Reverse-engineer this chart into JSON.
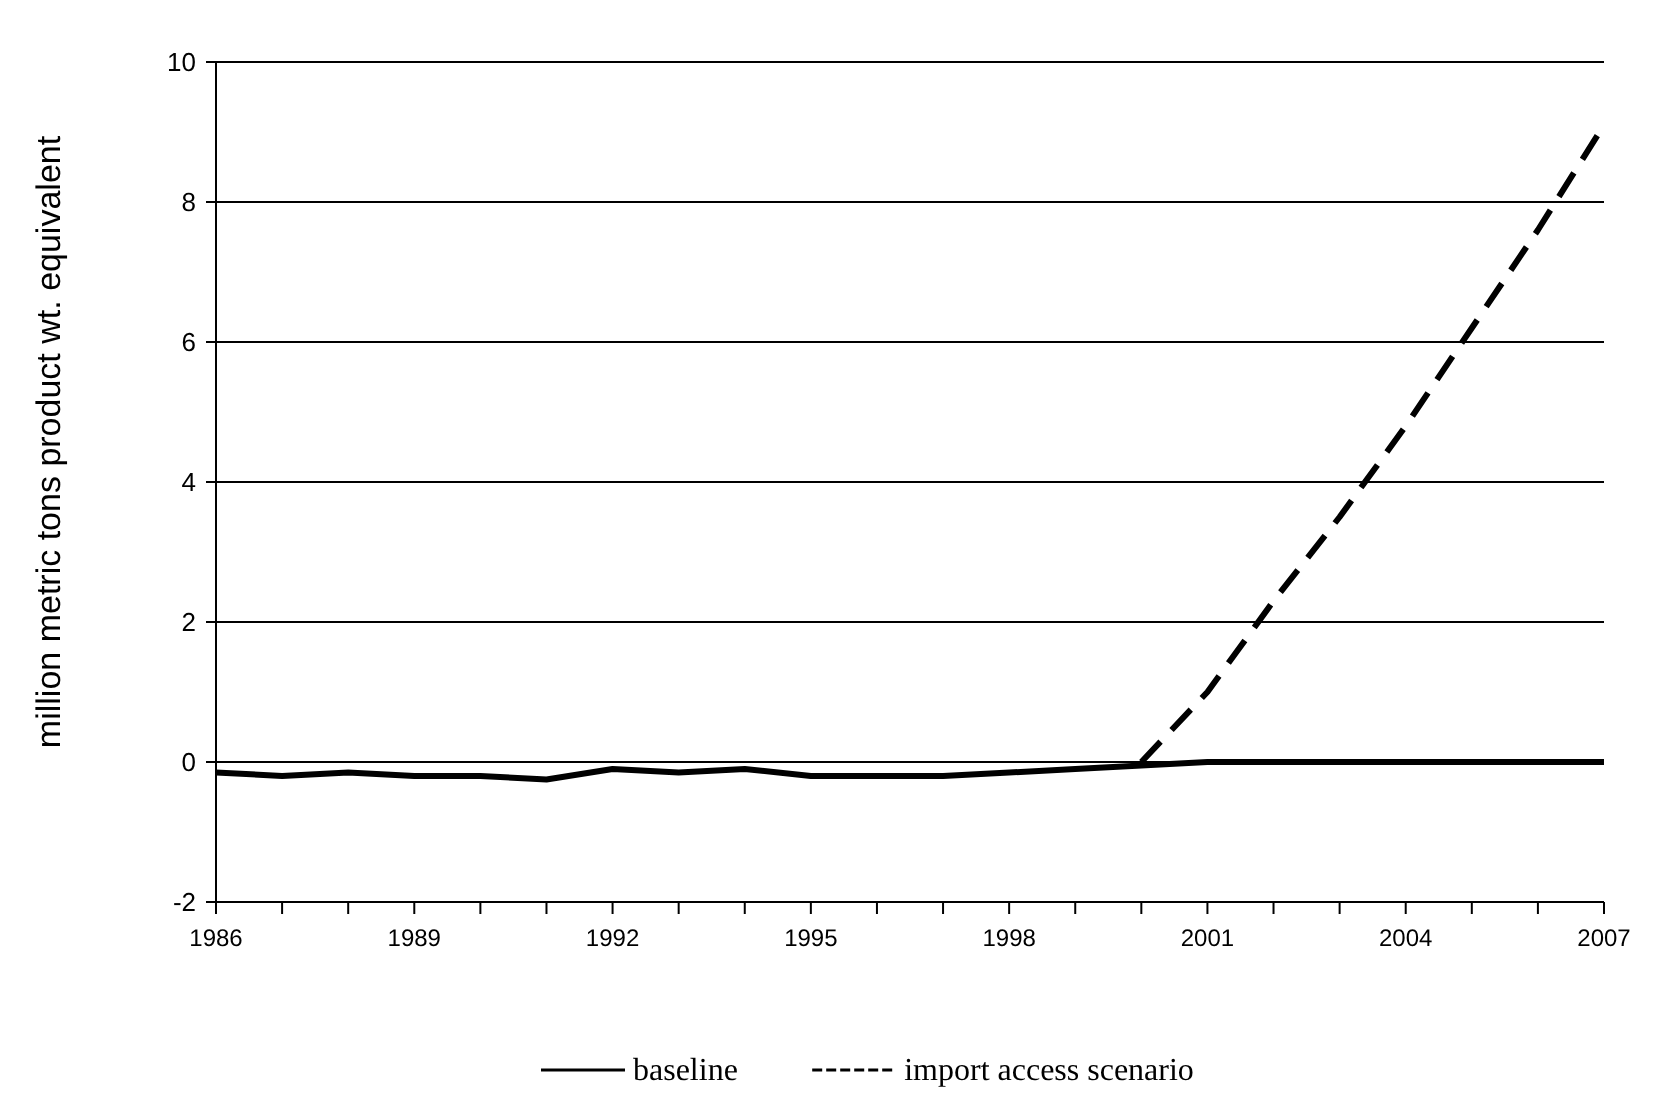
{
  "chart_data": {
    "type": "line",
    "ylabel": "million metric tons product wt. equivalent",
    "x": [
      1986,
      1987,
      1988,
      1989,
      1990,
      1991,
      1992,
      1993,
      1994,
      1995,
      1996,
      1997,
      1998,
      1999,
      2000,
      2001,
      2002,
      2003,
      2004,
      2005,
      2006,
      2007
    ],
    "xlim": [
      1986,
      2007
    ],
    "xticks": [
      1986,
      {
        "value": 1987,
        "label": null
      },
      {
        "value": 1988,
        "label": null
      },
      1989,
      {
        "value": 1990,
        "label": null
      },
      {
        "value": 1991,
        "label": null
      },
      1992,
      {
        "value": 1993,
        "label": null
      },
      {
        "value": 1994,
        "label": null
      },
      1995,
      {
        "value": 1996,
        "label": null
      },
      {
        "value": 1997,
        "label": null
      },
      1998,
      {
        "value": 1999,
        "label": null
      },
      {
        "value": 2000,
        "label": null
      },
      2001,
      {
        "value": 2002,
        "label": null
      },
      {
        "value": 2003,
        "label": null
      },
      2004,
      {
        "value": 2005,
        "label": null
      },
      {
        "value": 2006,
        "label": null
      },
      2007
    ],
    "ylim": [
      -2,
      10
    ],
    "yticks": [
      -2,
      0,
      2,
      4,
      6,
      8,
      10
    ],
    "grid": "y",
    "legend": "bottom",
    "series": [
      {
        "name": "baseline",
        "color": "#000000",
        "line_style": "solid",
        "values": [
          -0.15,
          -0.2,
          -0.15,
          -0.2,
          -0.2,
          -0.25,
          -0.1,
          -0.15,
          -0.1,
          -0.2,
          -0.2,
          -0.2,
          -0.15,
          -0.1,
          -0.05,
          0,
          0,
          0,
          0,
          0,
          0,
          0
        ]
      },
      {
        "name": "import access scenario",
        "color": "#000000",
        "line_style": "dashed",
        "x": [
          2000,
          2001,
          2002,
          2003,
          2004,
          2005,
          2006,
          2007
        ],
        "values": [
          0,
          1.0,
          2.3,
          3.5,
          4.8,
          6.2,
          7.6,
          9.1
        ]
      }
    ]
  }
}
